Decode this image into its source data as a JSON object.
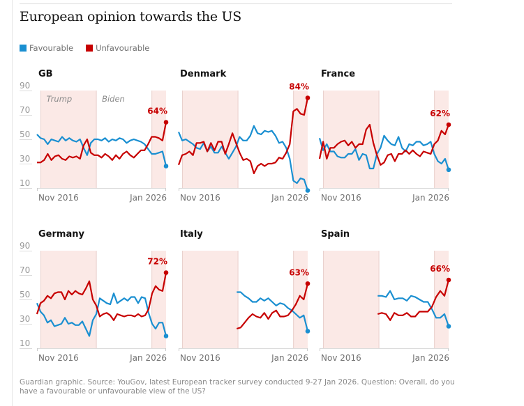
{
  "header": {
    "title": "European opinion towards the US"
  },
  "legend": [
    {
      "label": "Favourable",
      "color": "#1a8fd1"
    },
    {
      "label": "Unfavourable",
      "color": "#c70000"
    }
  ],
  "footer": {
    "source": "Guardian graphic. Source: YouGov, latest European tracker survey conducted 9-27 Jan 2026. Question: Overall, do you have a favourable or unfavourable view of the US?"
  },
  "chart_data": {
    "type": "line",
    "title": "European opinion towards the US",
    "ylim": [
      10,
      90
    ],
    "yticks": [
      90,
      70,
      50,
      30,
      10
    ],
    "xtick_labels": [
      "Nov 2016",
      "Jan 2026"
    ],
    "x_range": [
      "Nov 2016",
      "Jan 2026"
    ],
    "eras": [
      {
        "label": "Trump",
        "start": 0.03,
        "end": 0.46,
        "shaded": true
      },
      {
        "label": "Biden",
        "start": 0.46,
        "end": 0.89,
        "shaded": false
      },
      {
        "label": "",
        "start": 0.89,
        "end": 1.0,
        "shaded": true
      }
    ],
    "colors": {
      "favourable": "#1a8fd1",
      "unfavourable": "#c70000",
      "shade": "#fbe9e6"
    },
    "panels": [
      {
        "name": "GB",
        "show_era_labels": true,
        "end_label": "64%",
        "x_start": 0.0,
        "favourable": [
          54,
          51,
          50,
          46,
          50,
          49,
          48,
          52,
          49,
          51,
          49,
          48,
          50,
          43,
          37,
          47,
          50,
          50,
          49,
          51,
          48,
          50,
          49,
          51,
          50,
          47,
          49,
          50,
          49,
          48,
          46,
          42,
          38,
          38,
          39,
          40,
          28
        ],
        "unfavourable": [
          31,
          31,
          33,
          38,
          33,
          36,
          37,
          34,
          33,
          36,
          35,
          36,
          34,
          45,
          50,
          39,
          37,
          37,
          35,
          38,
          36,
          33,
          37,
          34,
          38,
          40,
          37,
          35,
          38,
          41,
          41,
          46,
          52,
          52,
          51,
          49,
          64
        ]
      },
      {
        "name": "Denmark",
        "show_era_labels": false,
        "end_label": "84%",
        "x_start": 0.0,
        "favourable": [
          56,
          49,
          50,
          48,
          46,
          43,
          42,
          47,
          40,
          44,
          39,
          39,
          44,
          39,
          34,
          39,
          44,
          52,
          49,
          49,
          53,
          61,
          55,
          54,
          57,
          56,
          57,
          53,
          47,
          48,
          43,
          34,
          16,
          14,
          18,
          17,
          8
        ],
        "unfavourable": [
          29,
          37,
          38,
          40,
          37,
          47,
          47,
          48,
          40,
          47,
          41,
          48,
          48,
          38,
          46,
          55,
          47,
          39,
          33,
          34,
          32,
          22,
          28,
          30,
          28,
          30,
          30,
          31,
          35,
          34,
          39,
          46,
          73,
          75,
          71,
          70,
          84
        ]
      },
      {
        "name": "France",
        "show_era_labels": false,
        "end_label": "62%",
        "x_start": 0.0,
        "favourable": [
          51,
          41,
          46,
          40,
          40,
          36,
          35,
          35,
          38,
          38,
          42,
          33,
          38,
          37,
          26,
          26,
          38,
          43,
          53,
          49,
          46,
          45,
          52,
          43,
          40,
          46,
          45,
          48,
          48,
          45,
          46,
          48,
          38,
          32,
          30,
          34,
          25
        ],
        "unfavourable": [
          34,
          48,
          34,
          43,
          43,
          46,
          48,
          49,
          45,
          48,
          43,
          46,
          46,
          58,
          62,
          47,
          37,
          29,
          31,
          37,
          38,
          32,
          38,
          38,
          41,
          38,
          41,
          38,
          36,
          40,
          39,
          38,
          46,
          49,
          57,
          54,
          62
        ]
      },
      {
        "name": "Germany",
        "show_era_labels": false,
        "end_label": "72%",
        "x_start": 0.0,
        "favourable": [
          47,
          40,
          37,
          31,
          33,
          28,
          29,
          30,
          35,
          30,
          31,
          29,
          29,
          32,
          26,
          20,
          33,
          38,
          51,
          49,
          47,
          46,
          55,
          47,
          49,
          51,
          49,
          52,
          52,
          47,
          52,
          51,
          39,
          30,
          26,
          31,
          31,
          20
        ],
        "unfavourable": [
          38,
          47,
          49,
          53,
          51,
          55,
          56,
          56,
          50,
          57,
          54,
          57,
          55,
          54,
          59,
          65,
          50,
          45,
          36,
          38,
          39,
          37,
          33,
          38,
          37,
          36,
          37,
          37,
          36,
          38,
          36,
          37,
          42,
          55,
          61,
          58,
          57,
          72
        ]
      },
      {
        "name": "Italy",
        "show_era_labels": false,
        "end_label": "63%",
        "x_start": 0.45,
        "favourable": [
          56,
          56,
          53,
          51,
          48,
          48,
          51,
          49,
          51,
          48,
          45,
          47,
          46,
          43,
          41,
          38,
          35,
          37,
          24
        ],
        "unfavourable": [
          26,
          27,
          31,
          35,
          38,
          36,
          35,
          39,
          34,
          39,
          41,
          36,
          36,
          37,
          41,
          46,
          53,
          50,
          63
        ]
      },
      {
        "name": "Spain",
        "show_era_labels": false,
        "end_label": "66%",
        "x_start": 0.45,
        "favourable": [
          53,
          53,
          52,
          57,
          50,
          51,
          51,
          49,
          53,
          52,
          50,
          48,
          48,
          42,
          35,
          35,
          38,
          28
        ],
        "unfavourable": [
          38,
          39,
          38,
          33,
          39,
          37,
          37,
          39,
          36,
          36,
          40,
          40,
          40,
          44,
          52,
          57,
          53,
          66
        ]
      }
    ]
  }
}
